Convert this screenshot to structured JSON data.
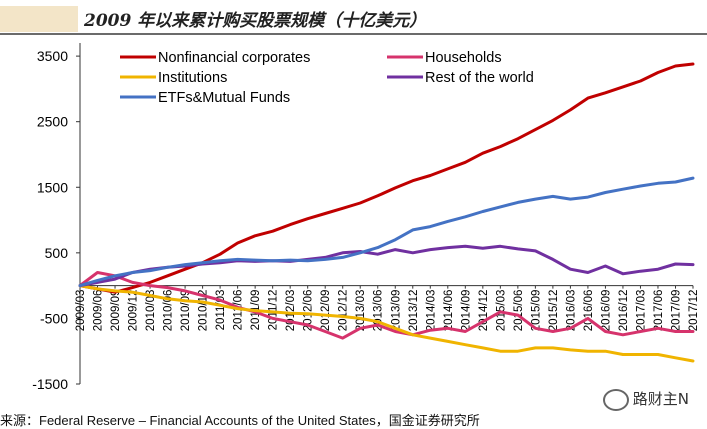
{
  "header": {
    "title": "2009 年以来累计购买股票规模（十亿美元）"
  },
  "footer": {
    "source": "来源：Federal Reserve – Financial Accounts of the United States，国金证券研究所",
    "watermark": "路财主N"
  },
  "chart_data": {
    "type": "line",
    "title": "2009 年以来累计购买股票规模（十亿美元）",
    "xlabel": "",
    "ylabel": "",
    "ylim": [
      -1500,
      3700
    ],
    "yticks": [
      -1500,
      -500,
      500,
      1500,
      2500,
      3500
    ],
    "grid": false,
    "legend": "top",
    "categories": [
      "2009/03",
      "2009/06",
      "2009/09",
      "2009/12",
      "2010/03",
      "2010/06",
      "2010/09",
      "2010/12",
      "2011/03",
      "2011/06",
      "2011/09",
      "2011/12",
      "2012/03",
      "2012/06",
      "2012/09",
      "2012/12",
      "2013/03",
      "2013/06",
      "2013/09",
      "2013/12",
      "2014/03",
      "2014/06",
      "2014/09",
      "2014/12",
      "2015/03",
      "2015/06",
      "2015/09",
      "2015/12",
      "2016/03",
      "2016/06",
      "2016/09",
      "2016/12",
      "2017/03",
      "2017/06",
      "2017/09",
      "2017/12"
    ],
    "xtick_labels": [
      "2009/03",
      "2009/06",
      "2009/09",
      "2009/12",
      "2010/03",
      "2010/06",
      "2010/09",
      "2010/12",
      "2011/03",
      "2011/06",
      "2011/09",
      "2011/12",
      "2012/03",
      "2012/06",
      "2012/09",
      "2012/12",
      "2013/03",
      "2013/06",
      "2013/09",
      "2013/12",
      "2014/03",
      "2014/06",
      "2014/09",
      "2014/12",
      "2015/03",
      "2015/06",
      "2015/09",
      "2015/12",
      "2016/03",
      "2016/06",
      "2016/09",
      "2016/12",
      "2017/03",
      "2017/06",
      "2017/09",
      "2017/12"
    ],
    "series": [
      {
        "name": "Nonfinancial corporates",
        "color": "#c00000",
        "values": [
          0,
          -50,
          -100,
          -30,
          50,
          150,
          250,
          350,
          480,
          650,
          760,
          830,
          930,
          1020,
          1100,
          1180,
          1260,
          1370,
          1490,
          1600,
          1680,
          1780,
          1880,
          2020,
          2120,
          2240,
          2380,
          2520,
          2680,
          2860,
          2940,
          3030,
          3120,
          3250,
          3350,
          3380
        ]
      },
      {
        "name": "Households",
        "color": "#d6336c",
        "values": [
          0,
          200,
          150,
          50,
          0,
          -30,
          -80,
          -150,
          -220,
          -330,
          -400,
          -500,
          -550,
          -600,
          -700,
          -800,
          -650,
          -600,
          -700,
          -750,
          -680,
          -650,
          -700,
          -550,
          -400,
          -450,
          -650,
          -700,
          -650,
          -500,
          -700,
          -750,
          -700,
          -650,
          -700,
          -700
        ]
      },
      {
        "name": "Institutions",
        "color": "#f0b400",
        "values": [
          0,
          -50,
          -80,
          -100,
          -150,
          -200,
          -230,
          -250,
          -300,
          -350,
          -380,
          -400,
          -420,
          -430,
          -450,
          -470,
          -500,
          -550,
          -650,
          -750,
          -800,
          -850,
          -900,
          -950,
          -1000,
          -1000,
          -950,
          -950,
          -980,
          -1000,
          -1000,
          -1050,
          -1050,
          -1050,
          -1100,
          -1150
        ]
      },
      {
        "name": "Rest of the world",
        "color": "#7030a0",
        "values": [
          0,
          50,
          100,
          200,
          250,
          280,
          300,
          330,
          350,
          380,
          370,
          380,
          370,
          400,
          430,
          500,
          520,
          480,
          550,
          500,
          550,
          580,
          600,
          570,
          600,
          560,
          530,
          400,
          250,
          200,
          300,
          180,
          220,
          250,
          330,
          320
        ]
      },
      {
        "name": "ETFs&Mutual Funds",
        "color": "#4472c4",
        "values": [
          0,
          80,
          150,
          200,
          230,
          280,
          320,
          350,
          380,
          400,
          390,
          380,
          390,
          380,
          400,
          430,
          500,
          580,
          700,
          850,
          900,
          980,
          1050,
          1130,
          1200,
          1270,
          1320,
          1360,
          1320,
          1350,
          1420,
          1470,
          1520,
          1560,
          1580,
          1640
        ]
      }
    ]
  }
}
